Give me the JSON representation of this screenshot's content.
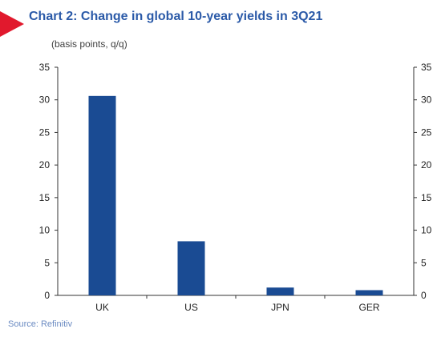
{
  "title": "Chart 2: Change in global 10-year yields in 3Q21",
  "subtitle": "(basis points, q/q)",
  "source": "Source: Refinitiv",
  "chart_data": {
    "type": "bar",
    "categories": [
      "UK",
      "US",
      "JPN",
      "GER"
    ],
    "values": [
      30.6,
      8.3,
      1.2,
      0.8
    ],
    "ylim": [
      0,
      35
    ],
    "yticks": [
      0,
      5,
      10,
      15,
      20,
      25,
      30,
      35
    ],
    "xlabel": "",
    "ylabel": "",
    "grid": false,
    "bar_color": "#1a4b93",
    "secondary_axis": true
  },
  "colors": {
    "title": "#2b5aa8",
    "marker": "#e1192d",
    "source": "#6b8bc2"
  }
}
